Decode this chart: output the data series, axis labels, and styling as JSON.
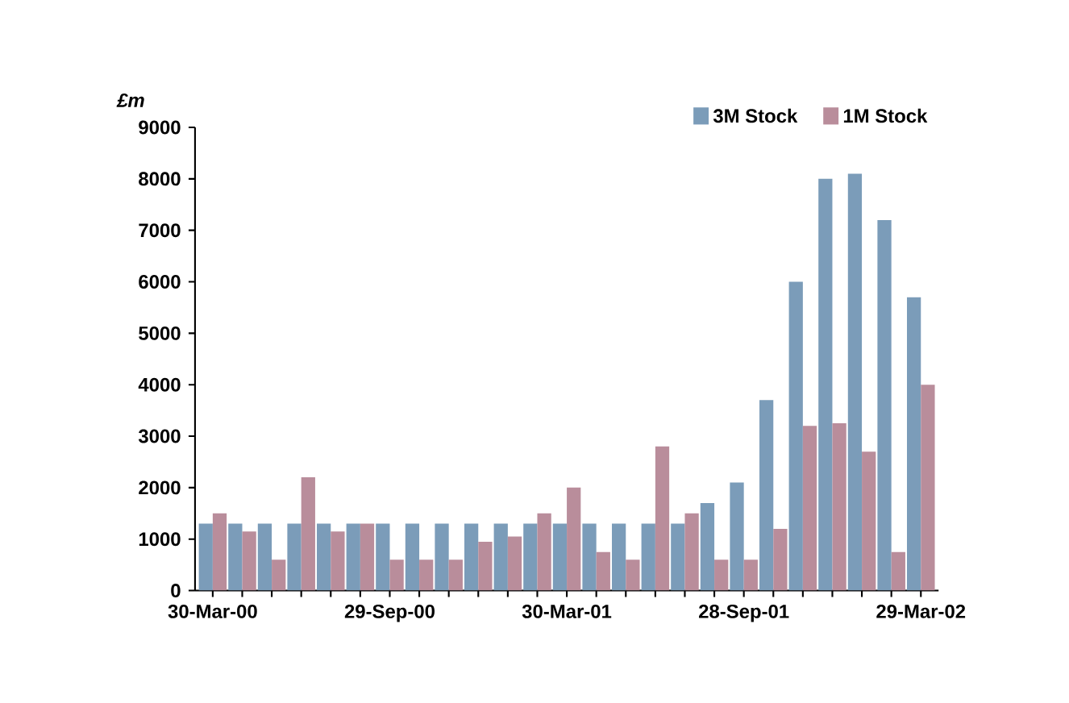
{
  "chart_data": {
    "type": "bar",
    "ylabel": "£m",
    "categories": [
      "30-Mar-00",
      null,
      null,
      null,
      null,
      null,
      "29-Sep-00",
      null,
      null,
      null,
      null,
      null,
      "30-Mar-01",
      null,
      null,
      null,
      null,
      null,
      "28-Sep-01",
      null,
      null,
      null,
      null,
      null,
      "29-Mar-02"
    ],
    "series": [
      {
        "name": "3M Stock",
        "color": "#7b9cb9",
        "values": [
          1300,
          1300,
          1300,
          1300,
          1300,
          1300,
          1300,
          1300,
          1300,
          1300,
          1300,
          1300,
          1300,
          1300,
          1300,
          1300,
          1300,
          1700,
          2100,
          3700,
          6000,
          8000,
          8100,
          7200,
          5700
        ]
      },
      {
        "name": "1M Stock",
        "color": "#b98d9b",
        "values": [
          1500,
          1150,
          600,
          2200,
          1150,
          1300,
          600,
          600,
          600,
          950,
          1050,
          1500,
          2000,
          750,
          600,
          2800,
          1500,
          600,
          600,
          1200,
          3200,
          3250,
          2700,
          750,
          4000
        ]
      }
    ],
    "ylim": [
      0,
      9000
    ],
    "yticks": [
      0,
      1000,
      2000,
      3000,
      4000,
      5000,
      6000,
      7000,
      8000,
      9000
    ],
    "legend": "top right",
    "grid": false
  }
}
